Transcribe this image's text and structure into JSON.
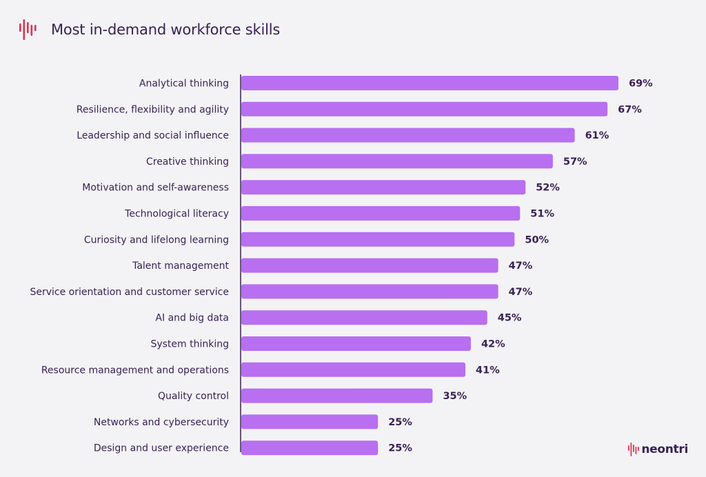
{
  "header": {
    "title": "Most in-demand workforce skills",
    "logo_icon": "soundwave-logo-icon"
  },
  "brand": {
    "name": "neontri",
    "icon": "soundwave-logo-icon"
  },
  "colors": {
    "bar": "#b86ff0",
    "text": "#3a2155",
    "accent": "#e0324f",
    "axis": "#3a2155",
    "background": "#f3f3f5"
  },
  "chart_data": {
    "type": "bar",
    "orientation": "horizontal",
    "categories": [
      "Analytical thinking",
      "Resilience, flexibility and agility",
      "Leadership and social influence",
      "Creative thinking",
      "Motivation and self-awareness",
      "Technological literacy",
      "Curiosity and lifelong learning",
      "Talent management",
      "Service orientation and customer service",
      "AI and big data",
      "System thinking",
      "Resource management and operations",
      "Quality control",
      "Networks and cybersecurity",
      "Design and user experience"
    ],
    "values": [
      69,
      67,
      61,
      57,
      52,
      51,
      50,
      47,
      47,
      45,
      42,
      41,
      35,
      25,
      25
    ],
    "value_labels": [
      "69%",
      "67%",
      "61%",
      "57%",
      "52%",
      "51%",
      "50%",
      "47%",
      "47%",
      "45%",
      "42%",
      "41%",
      "35%",
      "25%",
      "25%"
    ],
    "title": "Most in-demand workforce skills",
    "xlabel": "",
    "ylabel": "",
    "xlim": [
      0,
      69
    ],
    "grid": false,
    "legend": "none"
  }
}
